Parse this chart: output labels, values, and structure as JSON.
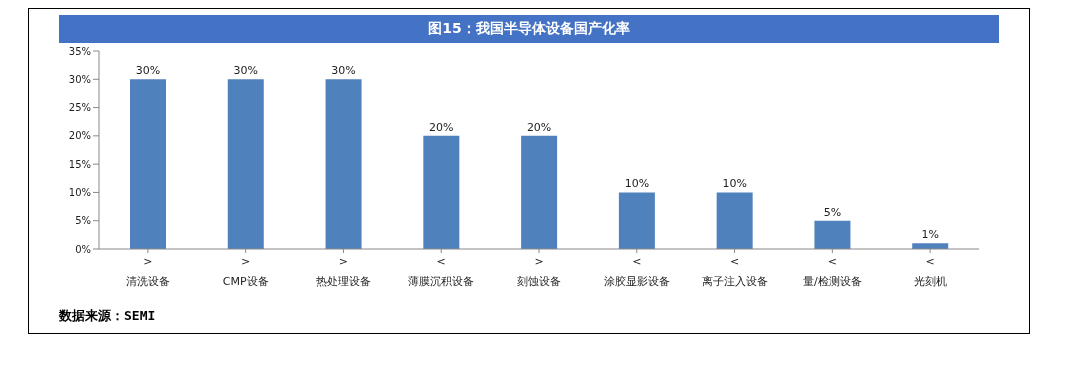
{
  "chart_data": {
    "type": "bar",
    "title": "图15：我国半导体设备国产化率",
    "categories": [
      ">\n清洗设备",
      ">\nCMP设备",
      ">\n热处理设备",
      "<\n薄膜沉积设备",
      ">\n刻蚀设备",
      "<\n涂胶显影设备",
      "<\n离子注入设备",
      "<\n量/检测设备",
      "<\n光刻机"
    ],
    "values": [
      30,
      30,
      30,
      20,
      20,
      10,
      10,
      5,
      1
    ],
    "value_labels": [
      "30%",
      "30%",
      "30%",
      "20%",
      "20%",
      "10%",
      "10%",
      "5%",
      "1%"
    ],
    "color": "#4f81bd",
    "ylim": [
      0,
      35
    ],
    "yticks": [
      {
        "value": 0,
        "label": "0%"
      },
      {
        "value": 5,
        "label": "5%"
      },
      {
        "value": 10,
        "label": "10%"
      },
      {
        "value": 15,
        "label": "15%"
      },
      {
        "value": 20,
        "label": "20%"
      },
      {
        "value": 25,
        "label": "25%"
      },
      {
        "value": 30,
        "label": "30%"
      },
      {
        "value": 35,
        "label": "35%"
      }
    ],
    "grid": false,
    "legend": false,
    "annotations": [
      "数据来源：SEMI"
    ]
  }
}
